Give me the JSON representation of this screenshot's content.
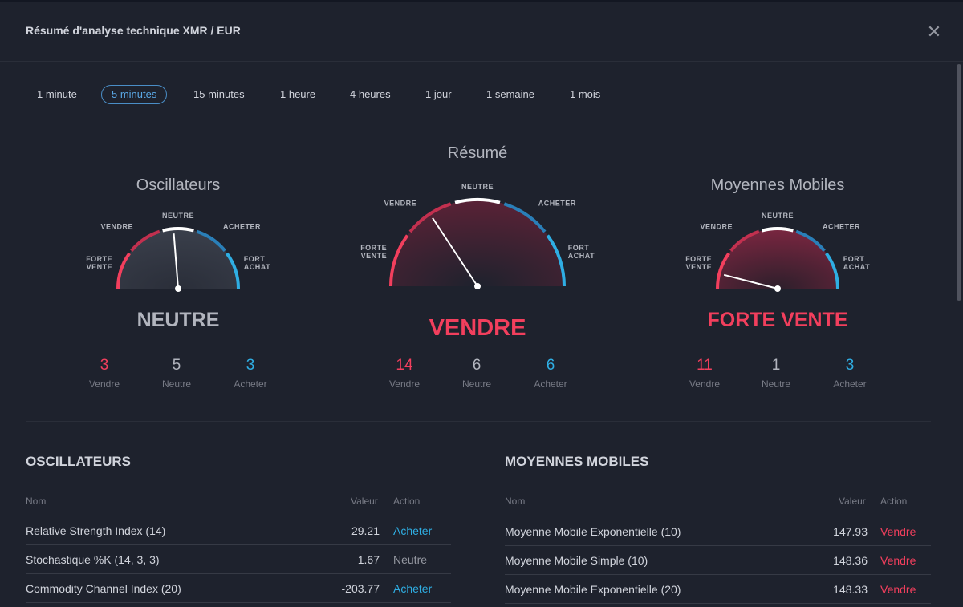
{
  "dialog": {
    "title": "Résumé d'analyse technique XMR / EUR",
    "close_glyph": "✕"
  },
  "tabs": [
    {
      "label": "1 minute",
      "active": false
    },
    {
      "label": "5 minutes",
      "active": true
    },
    {
      "label": "15 minutes",
      "active": false
    },
    {
      "label": "1 heure",
      "active": false
    },
    {
      "label": "4 heures",
      "active": false
    },
    {
      "label": "1 jour",
      "active": false
    },
    {
      "label": "1 semaine",
      "active": false
    },
    {
      "label": "1 mois",
      "active": false
    }
  ],
  "gauge_labels": {
    "strong_sell": [
      "FORTE",
      "VENTE"
    ],
    "sell": "VENDRE",
    "neutral": "NEUTRE",
    "buy": "ACHETER",
    "strong_buy": [
      "FORT",
      "ACHAT"
    ]
  },
  "count_labels": {
    "sell": "Vendre",
    "neutral": "Neutre",
    "buy": "Acheter"
  },
  "gauges": {
    "oscillators": {
      "title": "Oscillateurs",
      "verdict": "NEUTRE",
      "verdict_level": "neutral",
      "needle_value": -0.05,
      "counts": {
        "sell": "3",
        "neutral": "5",
        "buy": "3"
      }
    },
    "summary": {
      "title": "Résumé",
      "verdict": "VENDRE",
      "verdict_level": "sell",
      "needle_value": -0.37,
      "counts": {
        "sell": "14",
        "neutral": "6",
        "buy": "6"
      }
    },
    "moving_averages": {
      "title": "Moyennes Mobiles",
      "verdict": "FORTE VENTE",
      "verdict_level": "strong_sell",
      "needle_value": -0.84,
      "counts": {
        "sell": "11",
        "neutral": "1",
        "buy": "3"
      }
    }
  },
  "colors": {
    "sell": "#f23f5d",
    "buy": "#2faee3",
    "neutral": "#b2b5be",
    "accent": "#5aa8e6"
  },
  "oscillators_table": {
    "heading": "OSCILLATEURS",
    "columns": {
      "name": "Nom",
      "value": "Valeur",
      "action": "Action"
    },
    "rows": [
      {
        "name": "Relative Strength Index (14)",
        "value": "29.21",
        "action": "Acheter",
        "level": "buy"
      },
      {
        "name": "Stochastique %K (14, 3, 3)",
        "value": "1.67",
        "action": "Neutre",
        "level": "neutral"
      },
      {
        "name": "Commodity Channel Index (20)",
        "value": "-203.77",
        "action": "Acheter",
        "level": "buy"
      }
    ]
  },
  "moving_averages_table": {
    "heading": "MOYENNES MOBILES",
    "columns": {
      "name": "Nom",
      "value": "Valeur",
      "action": "Action"
    },
    "rows": [
      {
        "name": "Moyenne Mobile Exponentielle (10)",
        "value": "147.93",
        "action": "Vendre",
        "level": "sell"
      },
      {
        "name": "Moyenne Mobile Simple (10)",
        "value": "148.36",
        "action": "Vendre",
        "level": "sell"
      },
      {
        "name": "Moyenne Mobile Exponentielle (20)",
        "value": "148.33",
        "action": "Vendre",
        "level": "sell"
      }
    ]
  }
}
